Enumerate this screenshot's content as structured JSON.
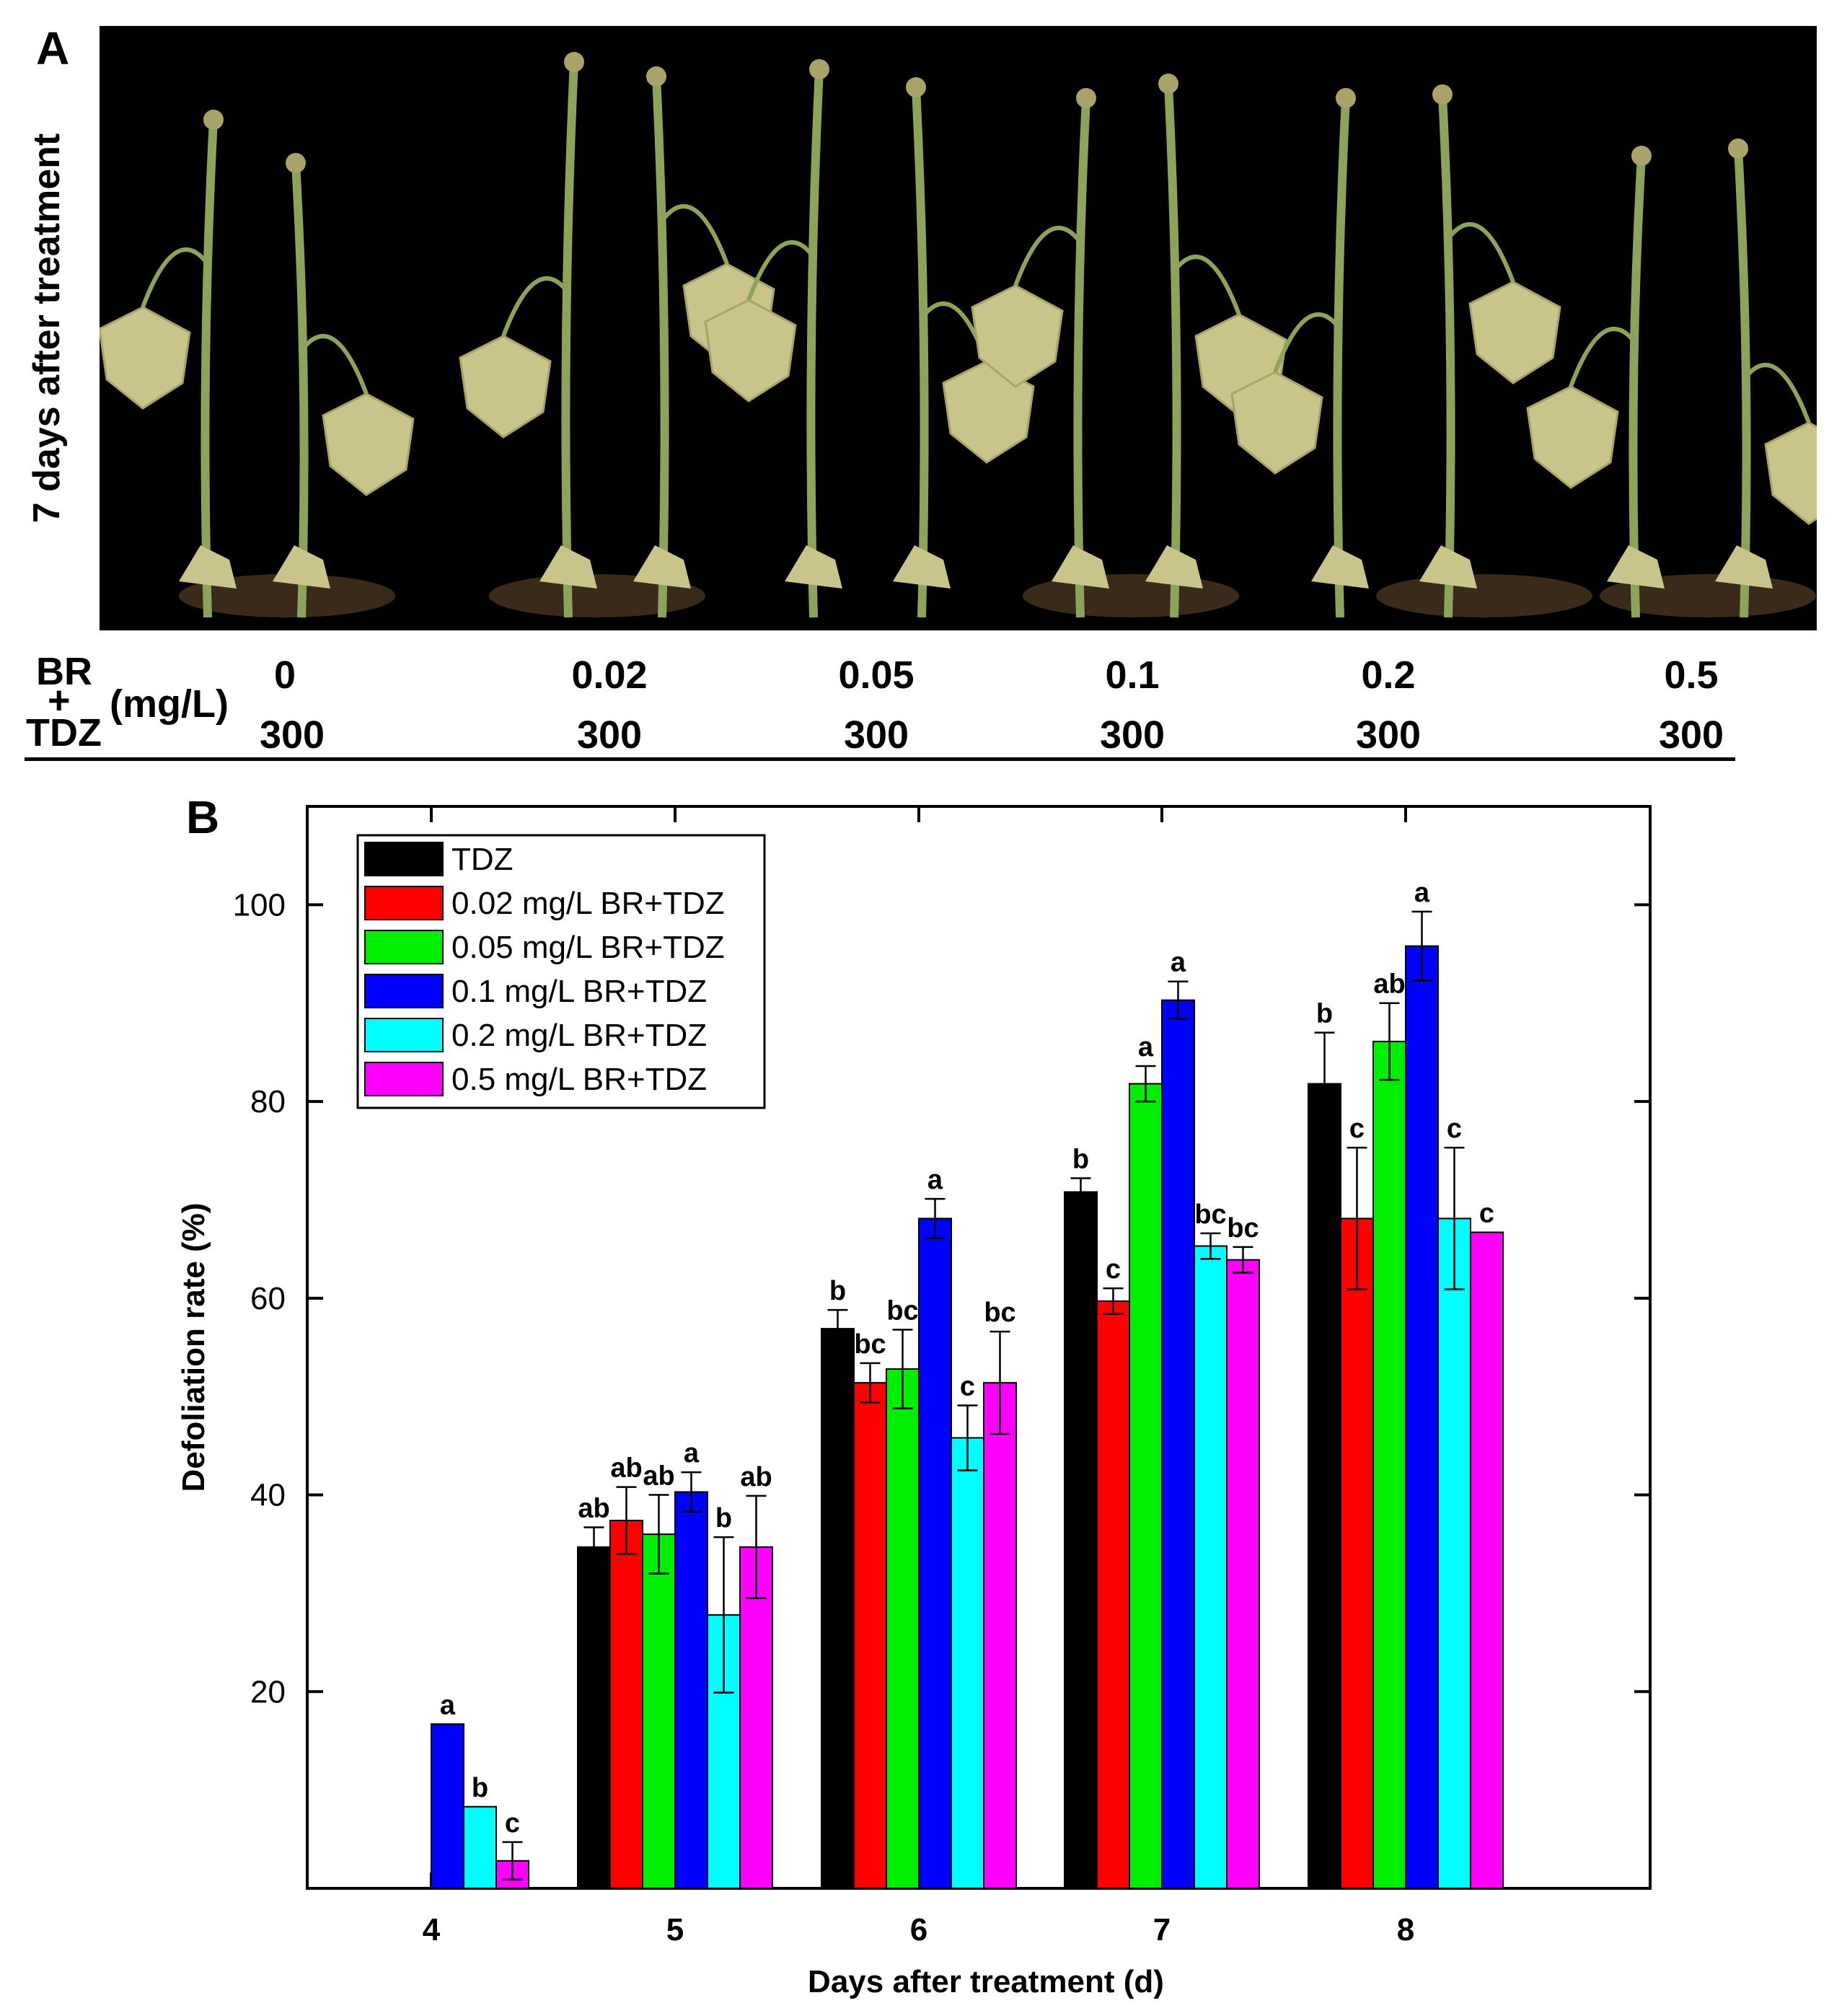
{
  "panels": {
    "a_label": "A",
    "b_label": "B"
  },
  "photo": {
    "side_label": "7 days after treatment",
    "stems": 12
  },
  "treatment_table": {
    "br_label": "BR",
    "plus": "+",
    "tdz_label": "TDZ",
    "unit": "(mg/L)",
    "br_values": [
      "0",
      "0.02",
      "0.05",
      "0.1",
      "0.2",
      "0.5"
    ],
    "tdz_values": [
      "300",
      "300",
      "300",
      "300",
      "300",
      "300"
    ]
  },
  "chart_data": {
    "type": "bar",
    "title": "",
    "xlabel": "Days after treatment (d)",
    "ylabel": "Defoliation rate (%)",
    "ylim": [
      0,
      110
    ],
    "yticks": [
      20,
      40,
      60,
      80,
      100
    ],
    "categories": [
      "4",
      "5",
      "6",
      "7",
      "8"
    ],
    "legend_position": "top-left",
    "series": [
      {
        "name": "TDZ",
        "color": "#000000",
        "values": [
          0,
          34.7,
          56.9,
          70.8,
          81.8
        ],
        "errors": [
          0,
          2.0,
          1.9,
          1.4,
          5.2
        ],
        "letters": [
          "",
          "ab",
          "b",
          "b",
          "b"
        ]
      },
      {
        "name": "0.02 mg/L BR+TDZ",
        "color": "#ff0000",
        "values": [
          0,
          37.4,
          51.4,
          59.7,
          68.1
        ],
        "errors": [
          0,
          3.4,
          2.0,
          1.3,
          7.2
        ],
        "letters": [
          "",
          "ab",
          "bc",
          "c",
          "c"
        ]
      },
      {
        "name": "0.05 mg/L BR+TDZ",
        "color": "#00ee00",
        "values": [
          0,
          36.0,
          52.8,
          81.8,
          86.1
        ],
        "errors": [
          0,
          4.0,
          4.0,
          1.8,
          3.9
        ],
        "letters": [
          "",
          "ab",
          "bc",
          "a",
          "ab"
        ]
      },
      {
        "name": "0.1 mg/L BR+TDZ",
        "color": "#0000ff",
        "values": [
          16.7,
          40.3,
          68.1,
          90.3,
          95.8
        ],
        "errors": [
          0,
          2.0,
          2.0,
          1.9,
          3.5
        ],
        "letters": [
          "a",
          "a",
          "a",
          "a",
          "a"
        ]
      },
      {
        "name": "0.2 mg/L BR+TDZ",
        "color": "#00ffff",
        "values": [
          8.3,
          27.8,
          45.8,
          65.3,
          68.1
        ],
        "errors": [
          0,
          7.9,
          3.3,
          1.3,
          7.2
        ],
        "letters": [
          "b",
          "b",
          "c",
          "bc",
          "c"
        ]
      },
      {
        "name": "0.5 mg/L BR+TDZ",
        "color": "#ff00ff",
        "values": [
          2.8,
          34.7,
          51.4,
          63.9,
          66.7
        ],
        "errors": [
          1.9,
          5.2,
          5.2,
          1.3,
          0
        ],
        "letters": [
          "c",
          "ab",
          "bc",
          "bc",
          "c"
        ]
      }
    ]
  }
}
